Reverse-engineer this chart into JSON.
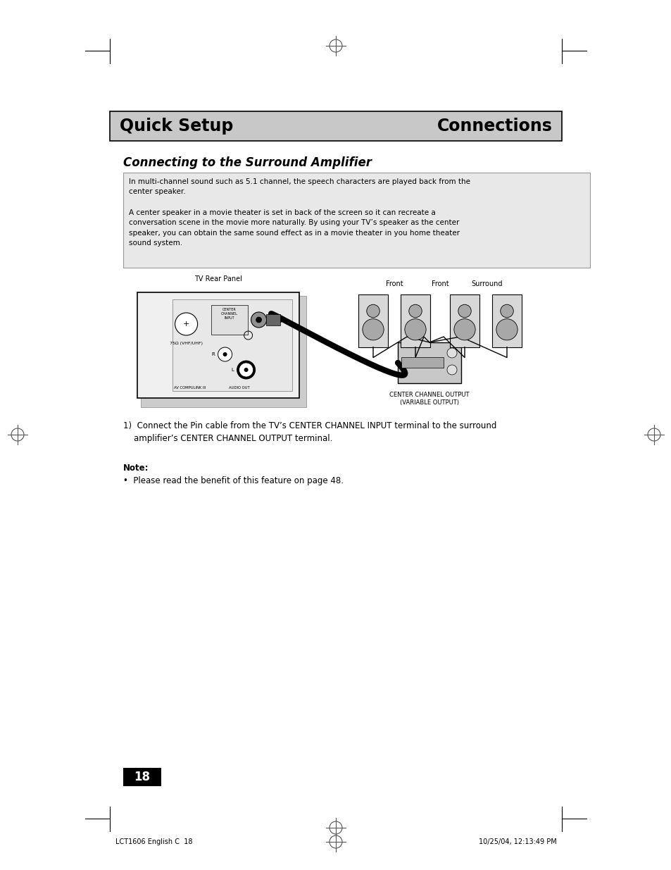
{
  "page_bg": "#ffffff",
  "header_bg": "#c8c8c8",
  "header_left": "Quick Setup",
  "header_right": "Connections",
  "header_fontsize": 17,
  "section_title": "Connecting to the Surround Amplifier",
  "section_title_fontsize": 12,
  "info_box_bg": "#e8e8e8",
  "info_box_border": "#999999",
  "info_text1": "In multi-channel sound such as 5.1 channel, the speech characters are played back from the\ncenter speaker.",
  "info_text2": "A center speaker in a movie theater is set in back of the screen so it can recreate a\nconversation scene in the movie more naturally. By using your TV’s speaker as the center\nspeaker, you can obtain the same sound effect as in a movie theater in you home theater\nsound system.",
  "step1_a": "1)  Connect the Pin cable from the TV’s CENTER CHANNEL INPUT terminal to the surround",
  "step1_b": "    amplifier’s CENTER CHANNEL OUTPUT terminal.",
  "note_label": "Note:",
  "note_text": "•  Please read the benefit of this feature on page 48.",
  "page_number": "18",
  "footer_left": "LCT1606 English C  18",
  "footer_right": "10/25/04, 12:13:49 PM",
  "crosshair_color": "#555555",
  "ml": 0.163,
  "mr": 0.837,
  "cl": 0.183,
  "cr": 0.878
}
